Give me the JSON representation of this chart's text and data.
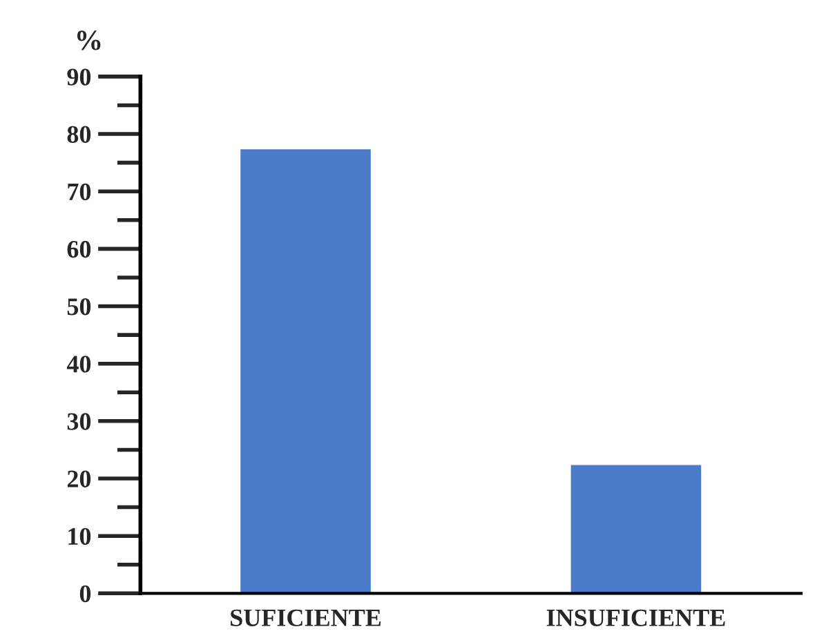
{
  "chart_data": {
    "type": "bar",
    "ylabel": "%",
    "categories": [
      "SUFICIENTE",
      "INSUFICIENTE"
    ],
    "values": [
      77.5,
      22.5
    ],
    "color": "#4a7cc9",
    "ylim": [
      0,
      90
    ],
    "yticks": [
      0,
      10,
      20,
      30,
      40,
      50,
      60,
      70,
      80,
      90
    ],
    "grid": false
  }
}
